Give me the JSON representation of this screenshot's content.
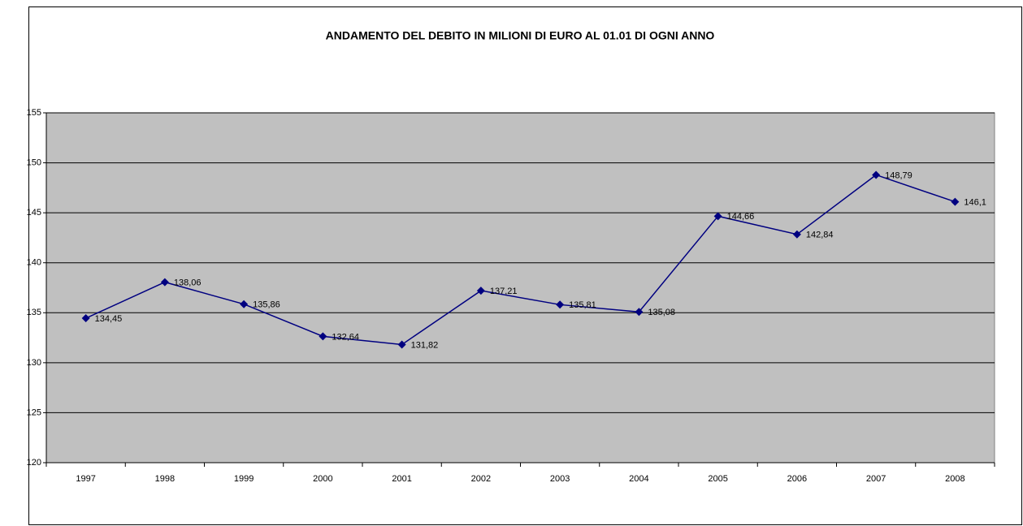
{
  "chart_data": {
    "type": "line",
    "title": "ANDAMENTO DEL DEBITO IN MILIONI DI EURO AL 01.01 DI OGNI ANNO",
    "categories": [
      "1997",
      "1998",
      "1999",
      "2000",
      "2001",
      "2002",
      "2003",
      "2004",
      "2005",
      "2006",
      "2007",
      "2008"
    ],
    "values": [
      134.45,
      138.06,
      135.86,
      132.64,
      131.82,
      137.21,
      135.81,
      135.08,
      144.66,
      142.84,
      148.79,
      146.1
    ],
    "value_labels": [
      "134,45",
      "138,06",
      "135,86",
      "132,64",
      "131,82",
      "137,21",
      "135,81",
      "135,08",
      "144,66",
      "142,84",
      "148,79",
      "146,1"
    ],
    "color": "#000080",
    "ylim": [
      120,
      155
    ],
    "yticks": [
      120,
      125,
      130,
      135,
      140,
      145,
      150,
      155
    ],
    "grid": true
  }
}
